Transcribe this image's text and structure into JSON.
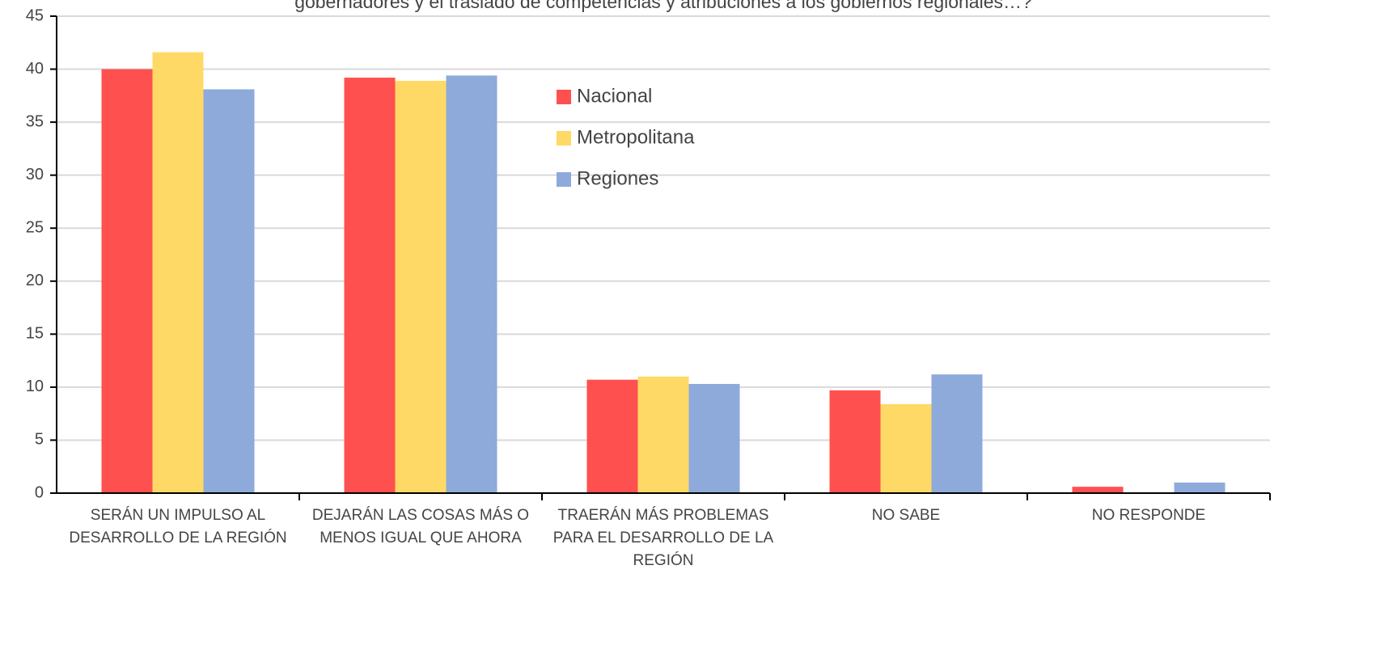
{
  "chart_data": {
    "type": "bar",
    "title": "gobernadores y el traslado de competencias y atribuciones a los gobiernos regionales…?",
    "categories": [
      "SERÁN UN IMPULSO AL DESARROLLO DE LA REGIÓN",
      "DEJARÁN LAS COSAS MÁS O MENOS IGUAL QUE AHORA",
      "TRAERÁN MÁS PROBLEMAS PARA EL DESARROLLO DE LA REGIÓN",
      "NO SABE",
      "NO RESPONDE"
    ],
    "series": [
      {
        "name": "Nacional",
        "color": "#ff5050",
        "values": [
          40,
          39.2,
          10.7,
          9.7,
          0.6
        ]
      },
      {
        "name": "Metropolitana",
        "color": "#ffd966",
        "values": [
          41.6,
          38.9,
          11.0,
          8.4,
          0
        ]
      },
      {
        "name": "Regiones",
        "color": "#8eaadb",
        "values": [
          38.1,
          39.4,
          10.3,
          11.2,
          1.0
        ]
      }
    ],
    "ylim": [
      0,
      45
    ],
    "yticks": [
      0,
      5,
      10,
      15,
      20,
      25,
      30,
      35,
      40,
      45
    ],
    "grid": true
  }
}
